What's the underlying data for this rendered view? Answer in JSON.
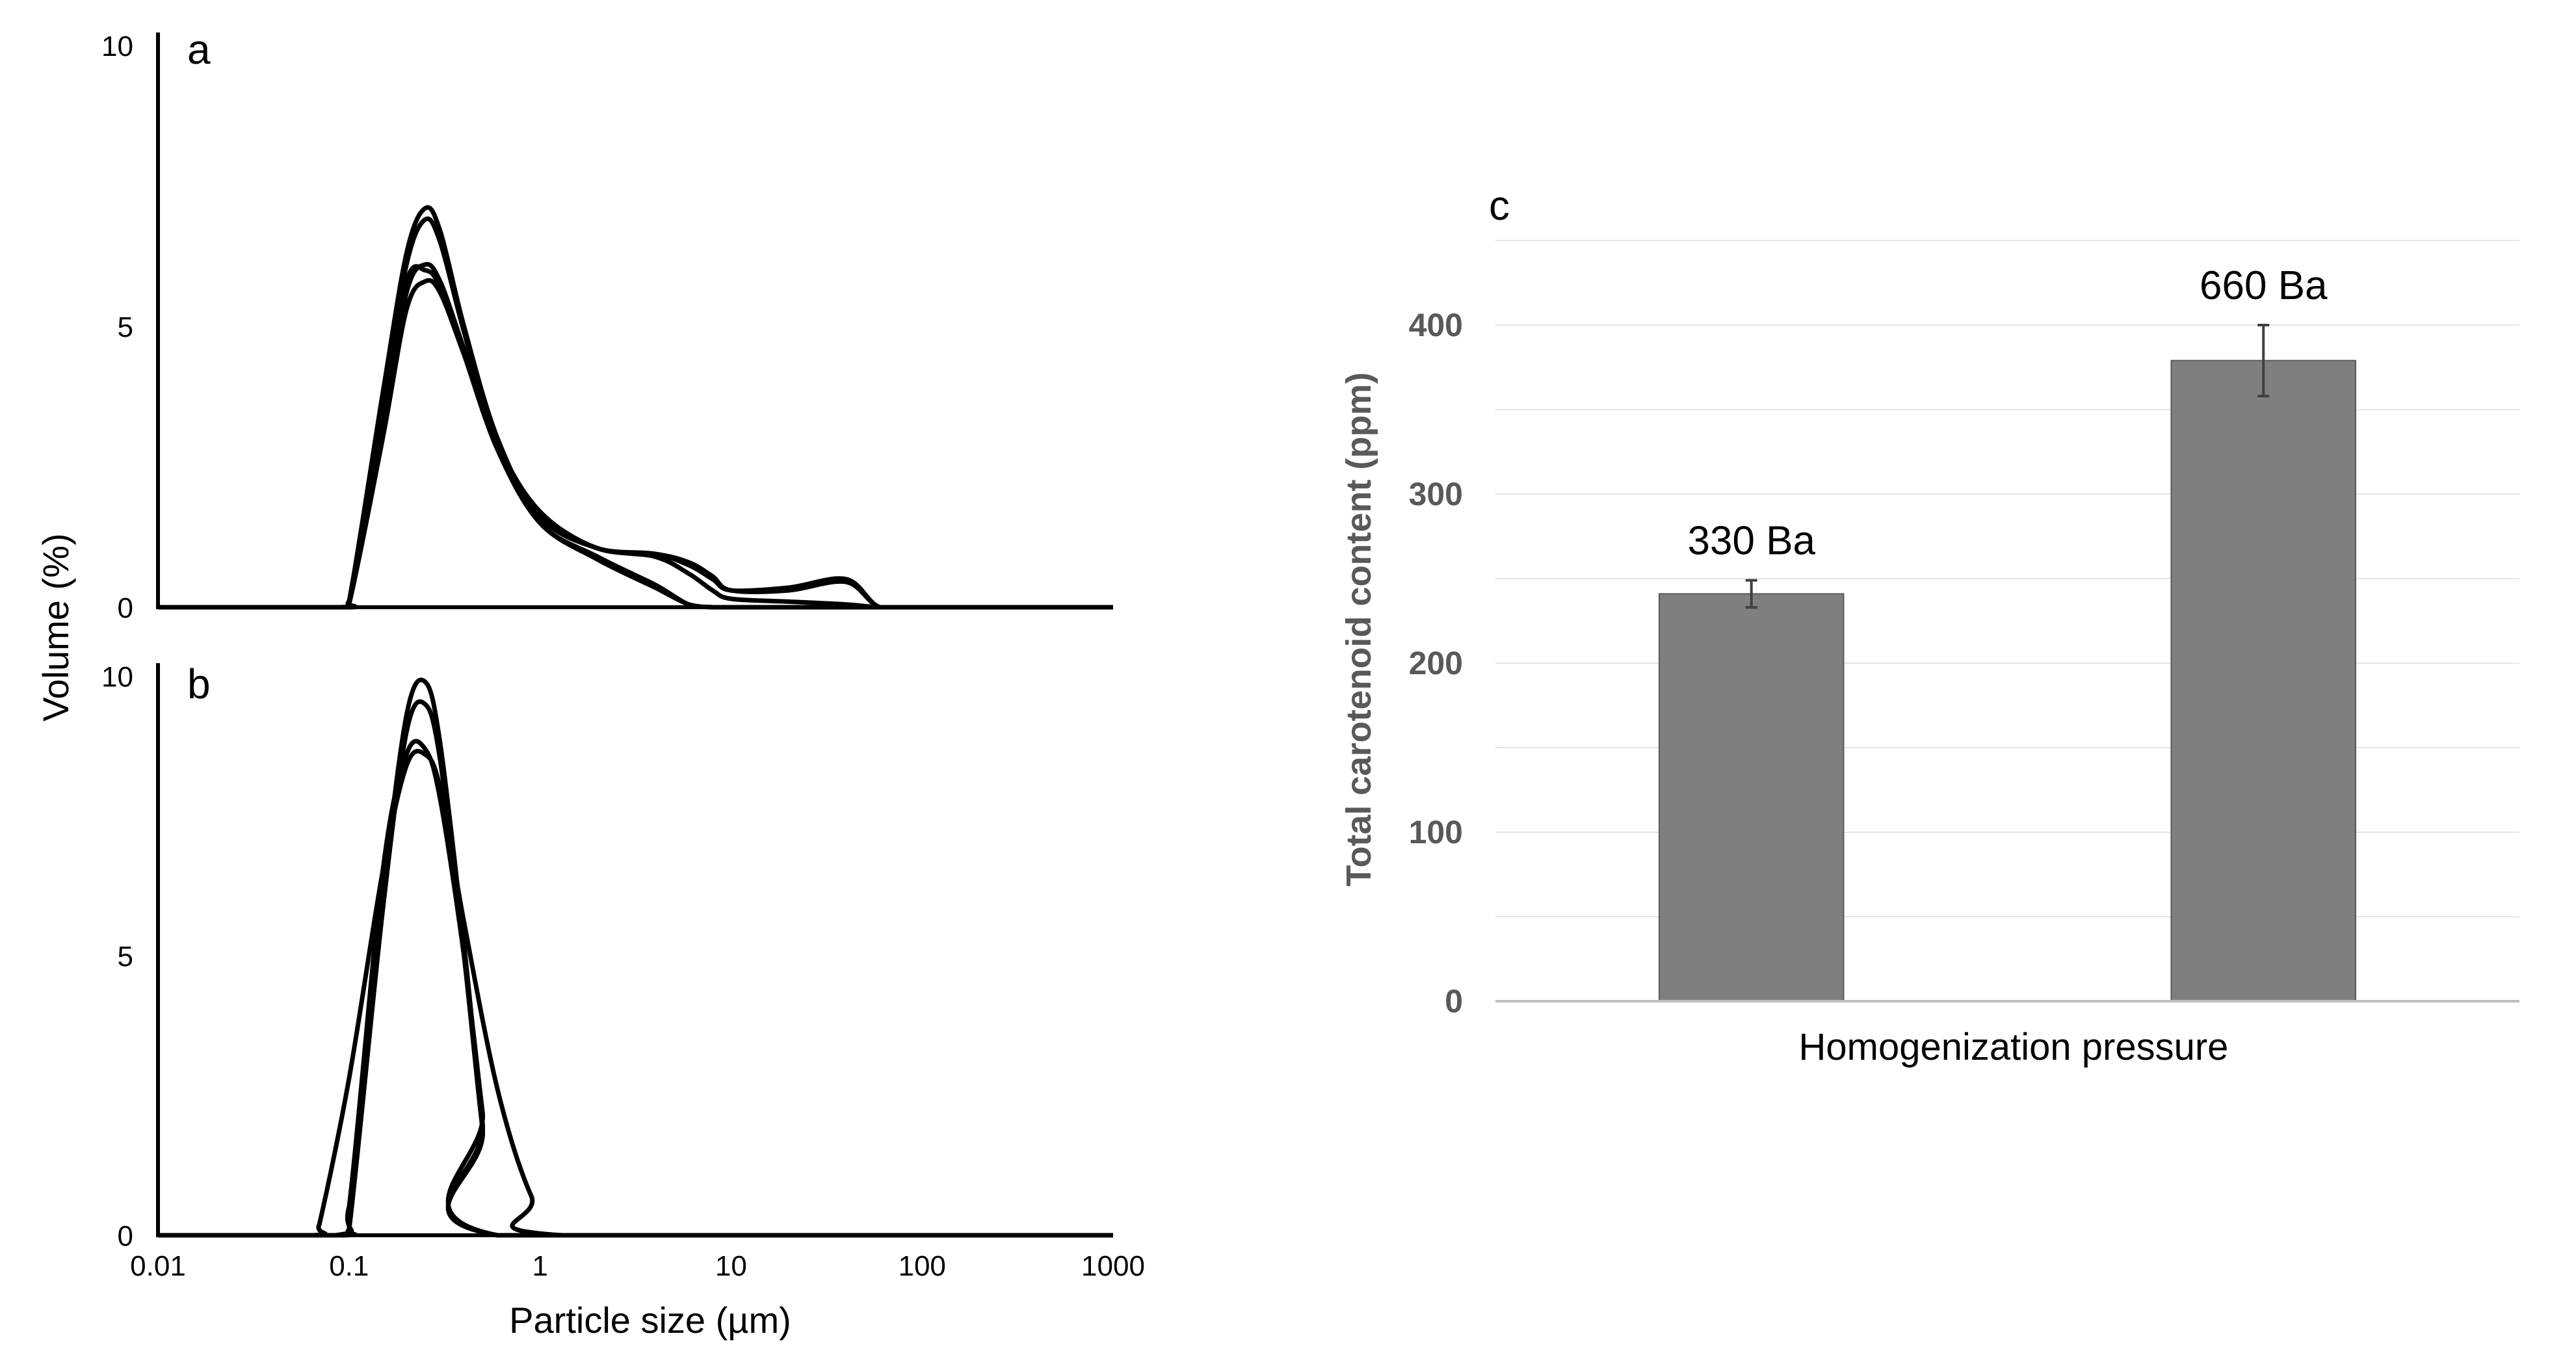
{
  "chart_data": [
    {
      "panel": "a",
      "type": "line",
      "ylabel": "Volume (%)",
      "x_scale": "log",
      "xlim": [
        0.01,
        1000
      ],
      "ylim": [
        0,
        10
      ],
      "y_ticks": [
        "0",
        "5",
        "10"
      ],
      "grid": false,
      "series": [
        {
          "x": [
            0.01,
            0.09,
            0.1,
            0.15,
            0.2,
            0.25,
            0.3,
            0.4,
            0.6,
            1,
            2,
            4,
            6,
            8,
            10,
            20,
            40,
            60,
            100,
            1000
          ],
          "y": [
            0,
            0,
            0.1,
            3.8,
            6.3,
            7.1,
            6.7,
            5.0,
            3.0,
            1.6,
            1.05,
            0.9,
            0.6,
            0.3,
            0.15,
            0.1,
            0.05,
            0,
            0,
            0
          ]
        },
        {
          "x": [
            0.01,
            0.09,
            0.1,
            0.15,
            0.2,
            0.25,
            0.3,
            0.4,
            0.6,
            1,
            2,
            4,
            6,
            8,
            10,
            20,
            40,
            60,
            100,
            1000
          ],
          "y": [
            0,
            0,
            0.1,
            3.6,
            6.1,
            6.9,
            6.5,
            4.9,
            2.9,
            1.5,
            0.9,
            0.4,
            0.05,
            0,
            0,
            0,
            0,
            0,
            0,
            0
          ]
        },
        {
          "x": [
            0.01,
            0.09,
            0.1,
            0.15,
            0.2,
            0.25,
            0.3,
            0.4,
            0.6,
            1,
            2,
            4,
            6,
            8,
            10,
            20,
            40,
            60,
            100,
            1000
          ],
          "y": [
            0,
            0,
            0.05,
            3.2,
            5.6,
            6.1,
            5.8,
            4.6,
            2.9,
            1.6,
            1.05,
            0.95,
            0.75,
            0.5,
            0.3,
            0.35,
            0.5,
            0,
            0,
            0
          ]
        },
        {
          "x": [
            0.01,
            0.09,
            0.1,
            0.15,
            0.2,
            0.25,
            0.3,
            0.4,
            0.6,
            1,
            2,
            4,
            6,
            8,
            10,
            20,
            40,
            60,
            100,
            1000
          ],
          "y": [
            0,
            0,
            0.05,
            3.0,
            5.3,
            5.8,
            5.6,
            4.5,
            2.9,
            1.7,
            1.05,
            0.95,
            0.8,
            0.55,
            0.3,
            0.3,
            0.45,
            0,
            0,
            0
          ]
        },
        {
          "x": [
            0.01,
            0.09,
            0.1,
            0.15,
            0.2,
            0.25,
            0.3,
            0.4,
            0.6,
            1,
            2,
            4,
            6,
            8,
            10,
            20,
            40,
            60,
            100,
            1000
          ],
          "y": [
            0,
            0,
            0.05,
            3.4,
            5.8,
            6.0,
            5.7,
            4.5,
            2.8,
            1.5,
            0.85,
            0.35,
            0.05,
            0,
            0,
            0,
            0,
            0,
            0,
            0
          ]
        }
      ]
    },
    {
      "panel": "b",
      "type": "line",
      "xlabel": "Particle size (µm)",
      "x_scale": "log",
      "xlim": [
        0.01,
        1000
      ],
      "ylim": [
        0,
        10
      ],
      "x_ticks": [
        "0.01",
        "0.1",
        "1",
        "10",
        "100",
        "1000"
      ],
      "y_ticks": [
        "0",
        "5",
        "10"
      ],
      "grid": false,
      "series": [
        {
          "x": [
            0.01,
            0.09,
            0.1,
            0.15,
            0.2,
            0.25,
            0.3,
            0.4,
            0.5,
            0.6,
            1000
          ],
          "y": [
            0,
            0,
            0.1,
            6.0,
            9.3,
            9.9,
            8.8,
            5.2,
            2.0,
            0,
            0
          ]
        },
        {
          "x": [
            0.01,
            0.09,
            0.1,
            0.15,
            0.2,
            0.25,
            0.3,
            0.4,
            0.5,
            0.6,
            1000
          ],
          "y": [
            0,
            0,
            0.1,
            5.8,
            9.0,
            9.5,
            8.5,
            5.0,
            1.9,
            0,
            0
          ]
        },
        {
          "x": [
            0.01,
            0.065,
            0.07,
            0.1,
            0.15,
            0.2,
            0.25,
            0.3,
            0.4,
            0.6,
            0.9,
            1.3,
            1000
          ],
          "y": [
            0,
            0,
            0.2,
            2.8,
            6.5,
            8.4,
            8.6,
            8.0,
            5.6,
            2.6,
            0.7,
            0,
            0
          ]
        },
        {
          "x": [
            0.01,
            0.085,
            0.1,
            0.15,
            0.2,
            0.25,
            0.3,
            0.4,
            0.5,
            0.6,
            1000
          ],
          "y": [
            0,
            0,
            0.5,
            6.5,
            8.6,
            8.7,
            7.8,
            5.0,
            2.2,
            0,
            0
          ]
        }
      ]
    },
    {
      "panel": "c",
      "type": "bar",
      "categories": [
        "330 Ba",
        "660 Ba"
      ],
      "values": [
        241,
        379
      ],
      "errors": [
        8,
        21
      ],
      "xlabel": "Homogenization pressure",
      "ylabel": "Total carotenoid content (ppm)",
      "ylim": [
        0,
        450
      ],
      "y_ticks": [
        "0",
        "100",
        "200",
        "300",
        "400"
      ],
      "grid": true,
      "bar_color": "#7f7f7f"
    }
  ]
}
